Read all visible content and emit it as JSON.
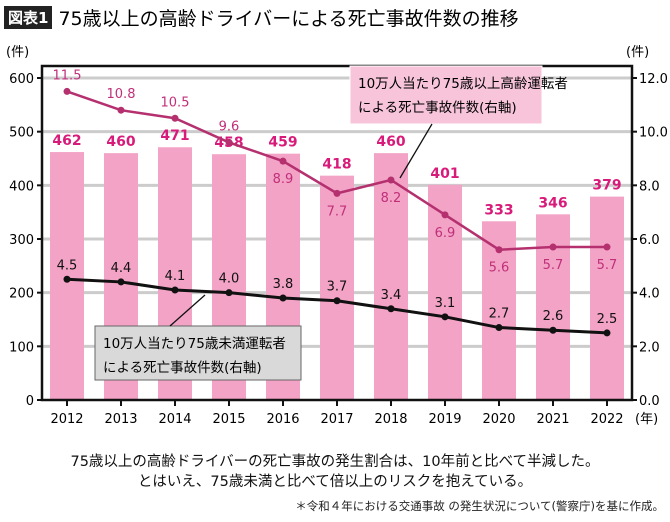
{
  "header": {
    "badge": "図表1",
    "title": "75歳以上の高齢ドライバーによる死亡事故件数の推移"
  },
  "chart_data": {
    "type": "bar+line",
    "categories": [
      "2012",
      "2013",
      "2014",
      "2015",
      "2016",
      "2017",
      "2018",
      "2019",
      "2020",
      "2021",
      "2022"
    ],
    "x_unit": "(年)",
    "left_axis": {
      "unit": "(件)",
      "ylim": [
        0,
        600
      ],
      "ticks": [
        "0",
        "100",
        "200",
        "300",
        "400",
        "500",
        "600"
      ]
    },
    "right_axis": {
      "unit": "(件)",
      "ylim": [
        0,
        12
      ],
      "ticks": [
        "0.0",
        "2.0",
        "4.0",
        "6.0",
        "8.0",
        "10.0",
        "12.0"
      ]
    },
    "grid": true,
    "bars": {
      "values": [
        462,
        460,
        471,
        458,
        459,
        418,
        460,
        401,
        333,
        346,
        379
      ],
      "color": "#f3a3c6",
      "label_color": "#d81b7a"
    },
    "series": [
      {
        "name": "10万人当たり75歳以上高齢運転者による死亡事故件数(右軸)",
        "axis": "right",
        "values": [
          11.5,
          10.8,
          10.5,
          9.6,
          8.9,
          7.7,
          8.2,
          6.9,
          5.6,
          5.7,
          5.7
        ],
        "labels": [
          "11.5",
          "10.8",
          "10.5",
          "9.6",
          "8.9",
          "7.7",
          "8.2",
          "6.9",
          "5.6",
          "5.7",
          "5.7"
        ],
        "color": "#b5306f"
      },
      {
        "name": "10万人当たり75歳未満運転者による死亡事故件数(右軸)",
        "axis": "right",
        "values": [
          4.5,
          4.4,
          4.1,
          4.0,
          3.8,
          3.7,
          3.4,
          3.1,
          2.7,
          2.6,
          2.5
        ],
        "labels": [
          "4.5",
          "4.4",
          "4.1",
          "4.0",
          "3.8",
          "3.7",
          "3.4",
          "3.1",
          "2.7",
          "2.6",
          "2.5"
        ],
        "color": "#111111"
      }
    ],
    "callouts": [
      {
        "lines": [
          "10万人当たり75歳以上高齢運転者",
          "による死亡事故件数(右軸)"
        ],
        "bg": "#f7c4da"
      },
      {
        "lines": [
          "10万人当たり75歳未満運転者",
          "による死亡事故件数(右軸)"
        ],
        "bg": "#d9d9d9"
      }
    ]
  },
  "notes": {
    "line1": "75歳以上の高齢ドライバーの死亡事故の発生割合は、10年前と比べて半減した。",
    "line2": "とはいえ、75歳未満と比べて倍以上のリスクを抱えている。",
    "source": "＊令和４年における交通事故 の発生状況について(警察庁)を基に作成。"
  }
}
